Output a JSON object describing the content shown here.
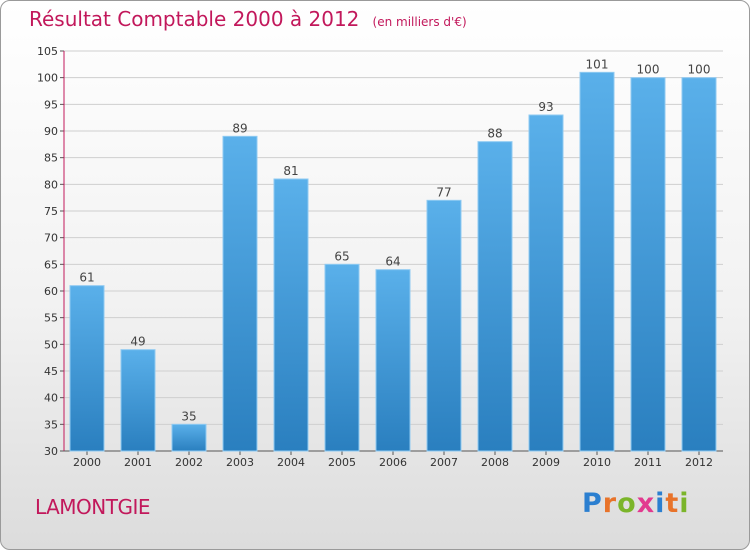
{
  "header": {
    "title": "Résultat Comptable 2000 à 2012",
    "unit": "(en milliers d'€)"
  },
  "footer": {
    "commune": "LAMONTGIE",
    "logo": "Proxiti",
    "logo_colors": [
      "#2b7fd0",
      "#e8732a",
      "#7bb52a",
      "#e23a8f",
      "#2b7fd0",
      "#e8732a",
      "#7bb52a"
    ]
  },
  "colors": {
    "title": "#c2185b",
    "bar_top": "#5ab0ea",
    "bar_bottom": "#2a7fbf",
    "axis_y": "#c2185b",
    "grid": "#cfcfcf"
  },
  "chart_data": {
    "type": "bar",
    "categories": [
      "2000",
      "2001",
      "2002",
      "2003",
      "2004",
      "2005",
      "2006",
      "2007",
      "2008",
      "2009",
      "2010",
      "2011",
      "2012"
    ],
    "values": [
      61,
      49,
      35,
      89,
      81,
      65,
      64,
      77,
      88,
      93,
      101,
      100,
      100
    ],
    "data_labels": [
      "61",
      "49",
      "35",
      "89",
      "81",
      "65",
      "64",
      "77",
      "88",
      "93",
      "101",
      "100",
      "100"
    ],
    "yticks": [
      30,
      35,
      40,
      45,
      50,
      55,
      60,
      65,
      70,
      75,
      80,
      85,
      90,
      95,
      100,
      105
    ],
    "ylim": [
      30,
      105
    ],
    "grid": true,
    "title": "Résultat Comptable 2000 à 2012",
    "xlabel": "",
    "ylabel": ""
  }
}
